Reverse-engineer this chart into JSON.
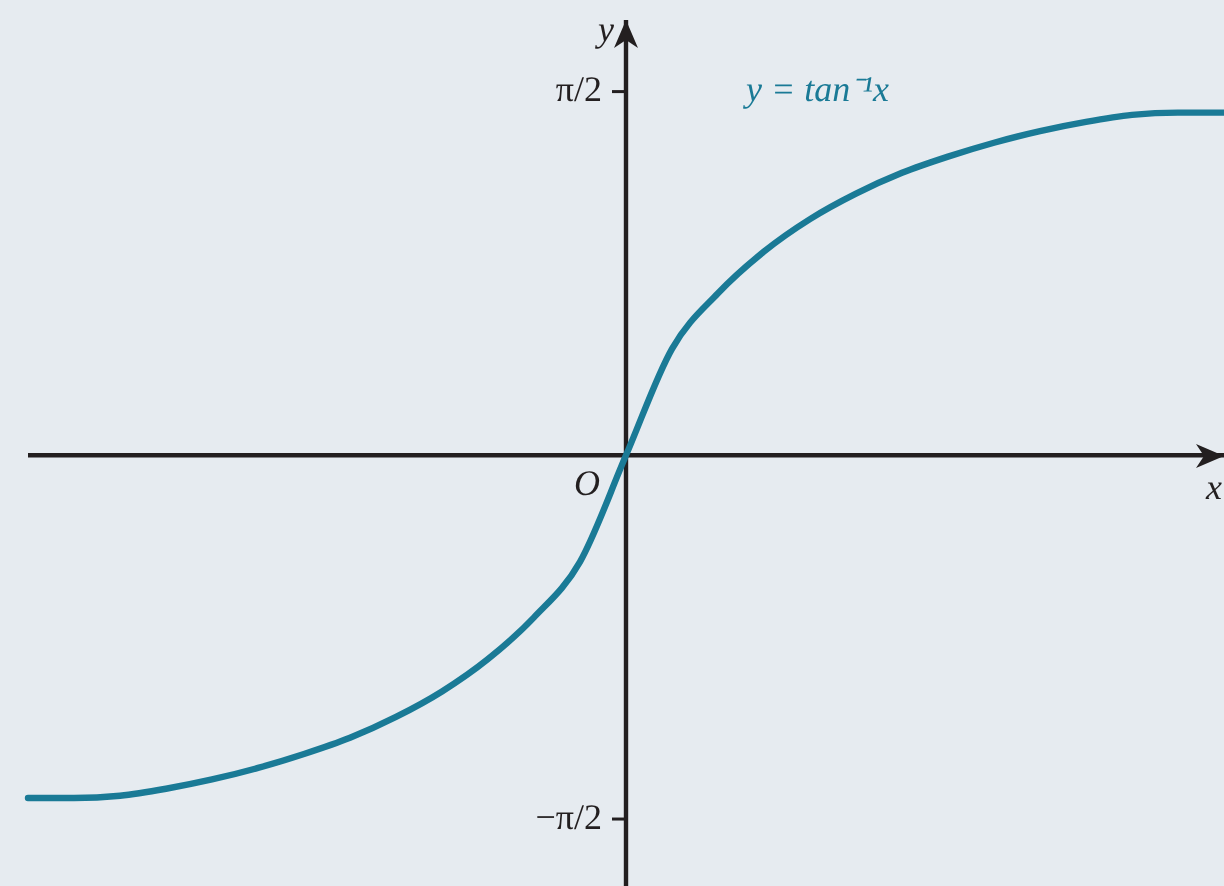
{
  "chart_data": {
    "type": "line",
    "xlabel": "x",
    "ylabel": "y",
    "categories": [
      null,
      null,
      null,
      null,
      null,
      null,
      null,
      null,
      null,
      null,
      null,
      null,
      null,
      null,
      null,
      null,
      null,
      null,
      null,
      null,
      null,
      null,
      null,
      null,
      null,
      null,
      null
    ],
    "series": [
      {
        "color": "#1a7a96",
        "values": [
          -1.48,
          -1.48,
          -1.47,
          -1.44,
          -1.4,
          -1.35,
          -1.29,
          -1.22,
          -1.13,
          -1.02,
          -0.88,
          -0.7,
          -0.46,
          0,
          0.46,
          0.7,
          0.88,
          1.02,
          1.13,
          1.22,
          1.29,
          1.35,
          1.4,
          1.44,
          1.47,
          1.48,
          1.48
        ]
      }
    ],
    "ylim": [
      -1.86,
      1.88
    ],
    "yticks": [
      {
        "value": 1.5708,
        "label": "π/2"
      },
      {
        "value": -1.5708,
        "label": "−π/2"
      }
    ],
    "marker": "none",
    "line_style": "solid",
    "annotations": [
      "y = tan⁻¹x",
      "O"
    ]
  }
}
